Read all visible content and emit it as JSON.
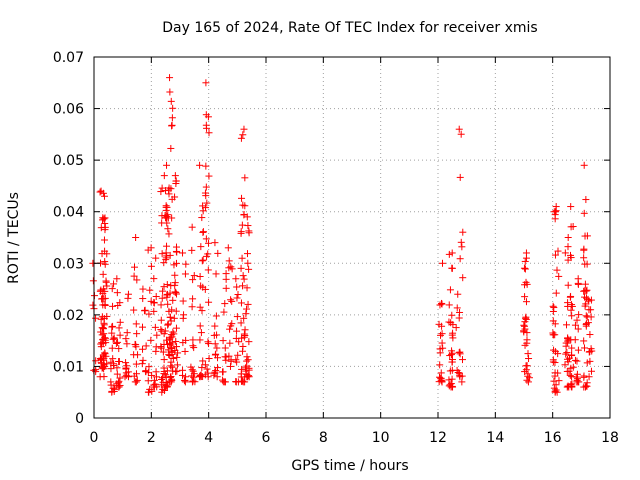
{
  "chart_data": {
    "type": "scatter",
    "title": "Day 165 of 2024, Rate Of TEC Index for receiver xmis",
    "xlabel": "GPS time / hours",
    "ylabel": "ROTI / TECUs",
    "xlim": [
      0,
      18
    ],
    "ylim": [
      0,
      0.07
    ],
    "x_ticks": [
      0,
      2,
      4,
      6,
      8,
      10,
      12,
      14,
      16,
      18
    ],
    "x_tick_labels": [
      "0",
      "2",
      "4",
      "6",
      "8",
      "10",
      "12",
      "14",
      "16",
      "18"
    ],
    "y_ticks": [
      0,
      0.01,
      0.02,
      0.03,
      0.04,
      0.05,
      0.06,
      0.07
    ],
    "y_tick_labels": [
      "0",
      "0.01",
      "0.02",
      "0.03",
      "0.04",
      "0.05",
      "0.06",
      "0.07"
    ],
    "grid": true,
    "marker": "+",
    "marker_color": "#ff0000",
    "series": [
      {
        "name": "ROTI",
        "clusters": [
          {
            "x": 0.03,
            "min": 0.009,
            "max": 0.03,
            "n": 10
          },
          {
            "x": 0.28,
            "min": 0.008,
            "max": 0.044,
            "n": 45
          },
          {
            "x": 0.38,
            "min": 0.01,
            "max": 0.043,
            "n": 35
          },
          {
            "x": 0.65,
            "min": 0.005,
            "max": 0.026,
            "n": 22
          },
          {
            "x": 0.85,
            "min": 0.006,
            "max": 0.027,
            "n": 22
          },
          {
            "x": 1.15,
            "min": 0.008,
            "max": 0.024,
            "n": 15
          },
          {
            "x": 1.45,
            "min": 0.007,
            "max": 0.035,
            "n": 18
          },
          {
            "x": 1.75,
            "min": 0.009,
            "max": 0.025,
            "n": 12
          },
          {
            "x": 1.95,
            "min": 0.005,
            "max": 0.033,
            "n": 15
          },
          {
            "x": 2.15,
            "min": 0.006,
            "max": 0.031,
            "n": 18
          },
          {
            "x": 2.4,
            "min": 0.005,
            "max": 0.047,
            "n": 30
          },
          {
            "x": 2.55,
            "min": 0.006,
            "max": 0.049,
            "n": 45
          },
          {
            "x": 2.7,
            "min": 0.007,
            "max": 0.066,
            "n": 45
          },
          {
            "x": 2.85,
            "min": 0.009,
            "max": 0.047,
            "n": 28
          },
          {
            "x": 3.15,
            "min": 0.007,
            "max": 0.032,
            "n": 15
          },
          {
            "x": 3.45,
            "min": 0.007,
            "max": 0.037,
            "n": 18
          },
          {
            "x": 3.75,
            "min": 0.008,
            "max": 0.049,
            "n": 25
          },
          {
            "x": 3.95,
            "min": 0.008,
            "max": 0.065,
            "n": 28
          },
          {
            "x": 4.25,
            "min": 0.008,
            "max": 0.034,
            "n": 18
          },
          {
            "x": 4.55,
            "min": 0.007,
            "max": 0.028,
            "n": 16
          },
          {
            "x": 4.75,
            "min": 0.01,
            "max": 0.033,
            "n": 15
          },
          {
            "x": 5.0,
            "min": 0.007,
            "max": 0.027,
            "n": 15
          },
          {
            "x": 5.2,
            "min": 0.007,
            "max": 0.056,
            "n": 35
          },
          {
            "x": 5.35,
            "min": 0.008,
            "max": 0.039,
            "n": 25
          },
          {
            "x": 12.1,
            "min": 0.007,
            "max": 0.03,
            "n": 22
          },
          {
            "x": 12.45,
            "min": 0.006,
            "max": 0.032,
            "n": 30
          },
          {
            "x": 12.7,
            "min": 0.008,
            "max": 0.024,
            "n": 12
          },
          {
            "x": 12.8,
            "min": 0.007,
            "max": 0.056,
            "n": 12
          },
          {
            "x": 15.05,
            "min": 0.009,
            "max": 0.031,
            "n": 22
          },
          {
            "x": 15.15,
            "min": 0.007,
            "max": 0.032,
            "n": 12
          },
          {
            "x": 16.05,
            "min": 0.005,
            "max": 0.04,
            "n": 25
          },
          {
            "x": 16.15,
            "min": 0.005,
            "max": 0.041,
            "n": 12
          },
          {
            "x": 16.5,
            "min": 0.006,
            "max": 0.035,
            "n": 25
          },
          {
            "x": 16.65,
            "min": 0.006,
            "max": 0.041,
            "n": 25
          },
          {
            "x": 16.85,
            "min": 0.007,
            "max": 0.027,
            "n": 18
          },
          {
            "x": 17.15,
            "min": 0.006,
            "max": 0.049,
            "n": 35
          },
          {
            "x": 17.3,
            "min": 0.008,
            "max": 0.023,
            "n": 15
          }
        ]
      }
    ]
  }
}
